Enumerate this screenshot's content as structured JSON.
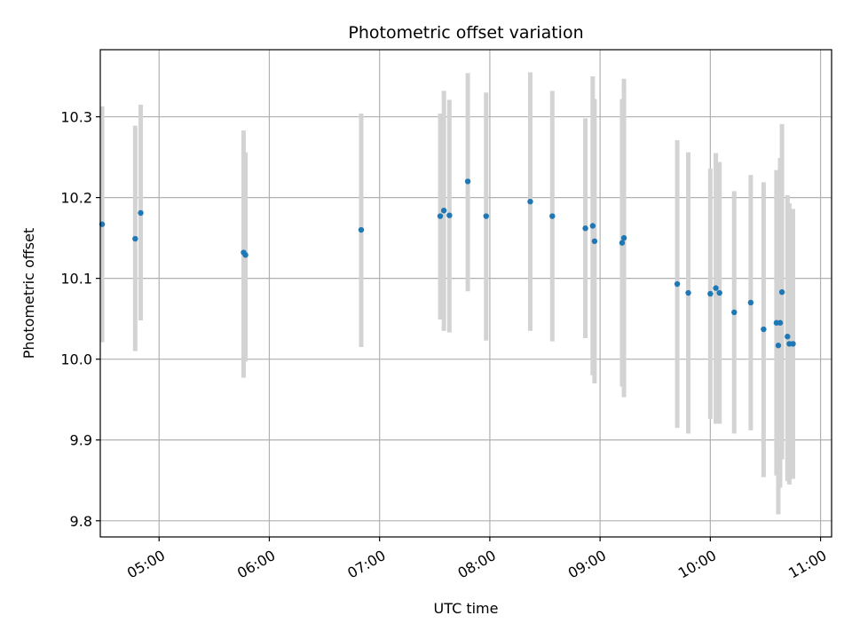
{
  "chart_data": {
    "type": "scatter",
    "title": "Photometric offset variation",
    "xlabel": "UTC time",
    "ylabel": "Photometric offset",
    "x_ticks": [
      "05:00",
      "06:00",
      "07:00",
      "08:00",
      "09:00",
      "10:00",
      "11:00"
    ],
    "y_ticks": [
      "9.8",
      "9.9",
      "10.0",
      "10.1",
      "10.2",
      "10.3"
    ],
    "y_tick_values": [
      9.8,
      9.9,
      10.0,
      10.1,
      10.2,
      10.3
    ],
    "xlim": [
      "04:28",
      "11:06"
    ],
    "ylim": [
      9.78,
      10.383
    ],
    "grid": true,
    "colors": {
      "point": "#1f77b4",
      "errorbar": "#d3d3d3",
      "grid": "#b0b0b0"
    },
    "points": [
      {
        "x": "04:29",
        "y": 10.167,
        "ylo": 10.021,
        "yhi": 10.313
      },
      {
        "x": "04:47",
        "y": 10.149,
        "ylo": 10.01,
        "yhi": 10.289
      },
      {
        "x": "04:50",
        "y": 10.181,
        "ylo": 10.048,
        "yhi": 10.315
      },
      {
        "x": "05:46",
        "y": 10.132,
        "ylo": 9.977,
        "yhi": 10.283
      },
      {
        "x": "05:47",
        "y": 10.129,
        "ylo": 9.997,
        "yhi": 10.256
      },
      {
        "x": "06:50",
        "y": 10.16,
        "ylo": 10.015,
        "yhi": 10.304
      },
      {
        "x": "07:33",
        "y": 10.177,
        "ylo": 10.049,
        "yhi": 10.304
      },
      {
        "x": "07:35",
        "y": 10.184,
        "ylo": 10.035,
        "yhi": 10.332
      },
      {
        "x": "07:38",
        "y": 10.178,
        "ylo": 10.033,
        "yhi": 10.321
      },
      {
        "x": "07:48",
        "y": 10.22,
        "ylo": 10.084,
        "yhi": 10.354
      },
      {
        "x": "07:58",
        "y": 10.177,
        "ylo": 10.023,
        "yhi": 10.33
      },
      {
        "x": "08:22",
        "y": 10.195,
        "ylo": 10.035,
        "yhi": 10.355
      },
      {
        "x": "08:34",
        "y": 10.177,
        "ylo": 10.022,
        "yhi": 10.332
      },
      {
        "x": "08:52",
        "y": 10.162,
        "ylo": 10.026,
        "yhi": 10.298
      },
      {
        "x": "08:56",
        "y": 10.165,
        "ylo": 9.98,
        "yhi": 10.35
      },
      {
        "x": "08:57",
        "y": 10.146,
        "ylo": 9.97,
        "yhi": 10.322
      },
      {
        "x": "09:12",
        "y": 10.144,
        "ylo": 9.966,
        "yhi": 10.322
      },
      {
        "x": "09:13",
        "y": 10.15,
        "ylo": 9.953,
        "yhi": 10.347
      },
      {
        "x": "09:42",
        "y": 10.093,
        "ylo": 9.915,
        "yhi": 10.271
      },
      {
        "x": "09:48",
        "y": 10.082,
        "ylo": 9.908,
        "yhi": 10.256
      },
      {
        "x": "10:00",
        "y": 10.081,
        "ylo": 9.926,
        "yhi": 10.236
      },
      {
        "x": "10:03",
        "y": 10.088,
        "ylo": 9.92,
        "yhi": 10.255
      },
      {
        "x": "10:05",
        "y": 10.082,
        "ylo": 9.92,
        "yhi": 10.244
      },
      {
        "x": "10:13",
        "y": 10.058,
        "ylo": 9.908,
        "yhi": 10.208
      },
      {
        "x": "10:22",
        "y": 10.07,
        "ylo": 9.912,
        "yhi": 10.228
      },
      {
        "x": "10:29",
        "y": 10.037,
        "ylo": 9.854,
        "yhi": 10.219
      },
      {
        "x": "10:36",
        "y": 10.045,
        "ylo": 9.856,
        "yhi": 10.234
      },
      {
        "x": "10:37",
        "y": 10.017,
        "ylo": 9.808,
        "yhi": 10.226
      },
      {
        "x": "10:39",
        "y": 10.083,
        "ylo": 9.876,
        "yhi": 10.291
      },
      {
        "x": "10:38",
        "y": 10.045,
        "ylo": 9.841,
        "yhi": 10.249
      },
      {
        "x": "10:42",
        "y": 10.028,
        "ylo": 9.849,
        "yhi": 10.203
      },
      {
        "x": "10:43",
        "y": 10.019,
        "ylo": 9.845,
        "yhi": 10.193
      },
      {
        "x": "10:45",
        "y": 10.019,
        "ylo": 9.852,
        "yhi": 10.186
      }
    ]
  }
}
